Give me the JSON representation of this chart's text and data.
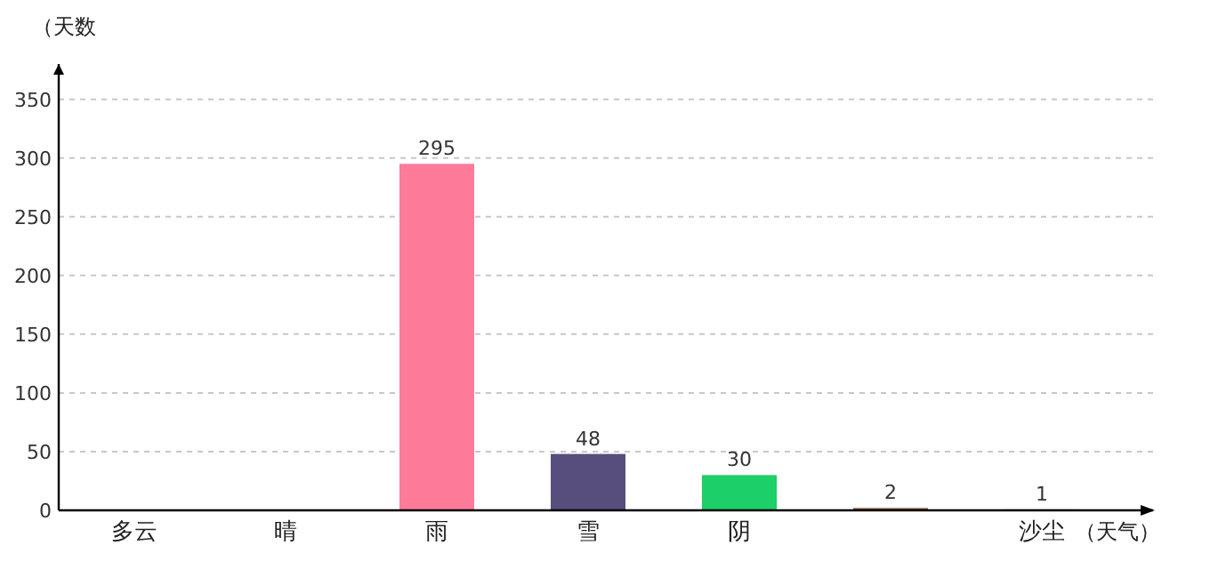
{
  "chart_data": {
    "type": "bar",
    "xlabel": "（天气）",
    "ylabel": "（天数",
    "categories": [
      "多云",
      "晴",
      "雨",
      "雪",
      "阴",
      null,
      "沙尘"
    ],
    "values": [
      null,
      null,
      295,
      48,
      30,
      2,
      1
    ],
    "value_labels": [
      null,
      null,
      "295",
      "48",
      "30",
      "2",
      "1"
    ],
    "colors": [
      null,
      null,
      "#fd7a98",
      "#574e7e",
      "#1ccf68",
      "#8b5a3c",
      "#e6c9c9"
    ],
    "ylim": [
      0,
      380
    ],
    "yticks": [
      0,
      50,
      100,
      150,
      200,
      250,
      300,
      350
    ],
    "grid": "y"
  }
}
